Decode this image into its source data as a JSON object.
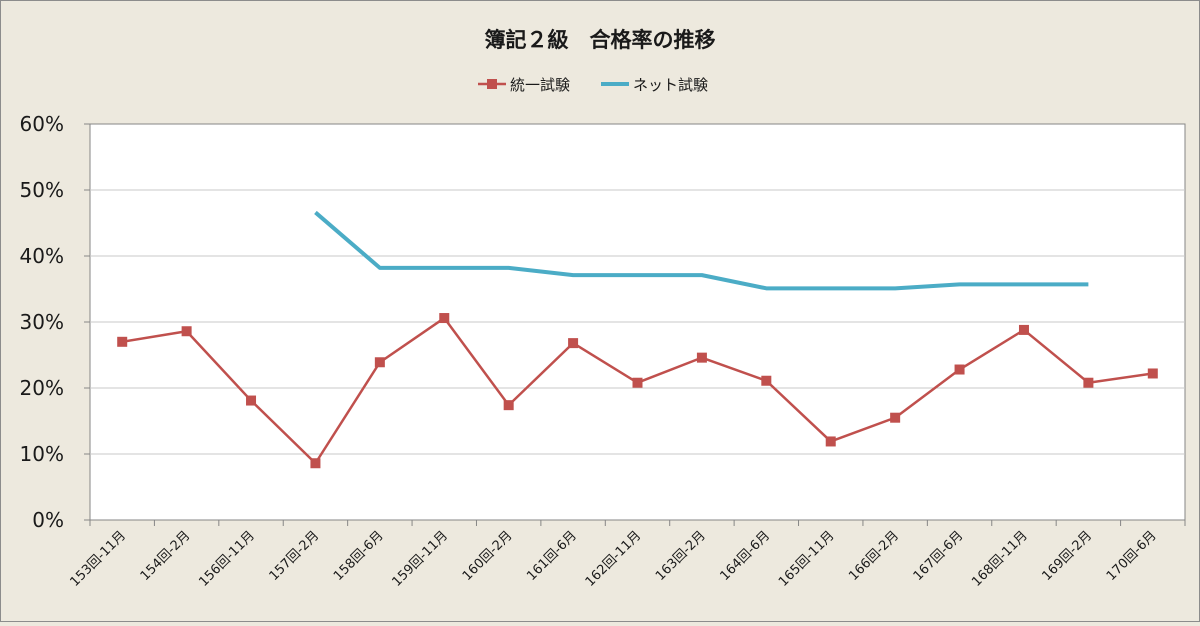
{
  "chart_data": {
    "type": "line",
    "title": "簿記２級　合格率の推移",
    "categories": [
      "153回-11月",
      "154回-2月",
      "156回-11月",
      "157回-2月",
      "158回-6月",
      "159回-11月",
      "160回-2月",
      "161回-6月",
      "162回-11月",
      "163回-2月",
      "164回-6月",
      "165回-11月",
      "166回-2月",
      "167回-6月",
      "168回-11月",
      "169回-2月",
      "170回-6月"
    ],
    "series": [
      {
        "name": "統一試験",
        "color": "#c0504d",
        "marker": "square",
        "values": [
          27.0,
          28.6,
          18.1,
          8.6,
          23.9,
          30.6,
          17.4,
          26.8,
          20.8,
          24.6,
          21.1,
          11.9,
          15.5,
          22.8,
          28.8,
          20.8,
          22.2
        ]
      },
      {
        "name": "ネット試験",
        "color": "#4bacc6",
        "marker": "none",
        "values": [
          null,
          null,
          null,
          46.6,
          38.2,
          38.2,
          38.2,
          37.1,
          37.1,
          37.1,
          35.1,
          35.1,
          35.1,
          35.7,
          35.7,
          35.7,
          null
        ]
      }
    ],
    "y_ticks": [
      "0%",
      "10%",
      "20%",
      "30%",
      "40%",
      "50%",
      "60%"
    ],
    "ylim": [
      0,
      60
    ],
    "grid": true,
    "legend_position": "top"
  },
  "colors": {
    "background": "#ede9de",
    "plot_background": "#ffffff",
    "gridline": "#c8c8c8",
    "axis": "#868686"
  }
}
